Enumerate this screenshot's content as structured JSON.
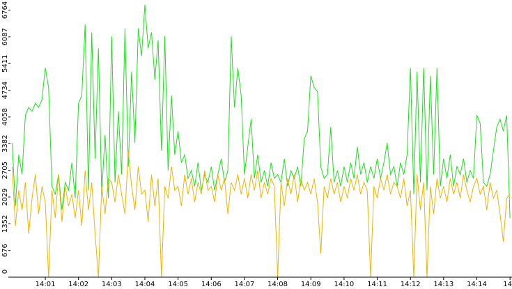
{
  "chart_data": {
    "type": "line",
    "x": [
      0,
      0.1,
      0.2,
      0.3,
      0.4,
      0.5,
      0.6,
      0.7,
      0.8,
      0.9,
      1,
      1.1,
      1.2,
      1.3,
      1.4,
      1.5,
      1.6,
      1.7,
      1.8,
      1.9,
      2,
      2.1,
      2.2,
      2.3,
      2.4,
      2.5,
      2.6,
      2.7,
      2.8,
      2.9,
      3,
      3.1,
      3.2,
      3.3,
      3.4,
      3.5,
      3.6,
      3.7,
      3.8,
      3.9,
      4,
      4.1,
      4.2,
      4.3,
      4.4,
      4.5,
      4.6,
      4.7,
      4.8,
      4.9,
      5,
      5.1,
      5.2,
      5.3,
      5.4,
      5.5,
      5.6,
      5.7,
      5.8,
      5.9,
      6,
      6.1,
      6.2,
      6.3,
      6.4,
      6.5,
      6.6,
      6.7,
      6.8,
      6.9,
      7,
      7.1,
      7.2,
      7.3,
      7.4,
      7.5,
      7.6,
      7.7,
      7.8,
      7.9,
      8,
      8.1,
      8.2,
      8.3,
      8.4,
      8.5,
      8.6,
      8.7,
      8.8,
      8.9,
      9,
      9.1,
      9.2,
      9.3,
      9.4,
      9.5,
      9.6,
      9.7,
      9.8,
      9.9,
      10,
      10.1,
      10.2,
      10.3,
      10.4,
      10.5,
      10.6,
      10.7,
      10.8,
      10.9,
      11,
      11.1,
      11.2,
      11.3,
      11.4,
      11.5,
      11.6,
      11.7,
      11.8,
      11.9,
      12,
      12.1,
      12.2,
      12.3,
      12.4,
      12.5,
      12.6,
      12.7,
      12.8,
      12.9,
      13,
      13.1,
      13.2,
      13.3,
      13.4,
      13.5,
      13.6,
      13.7,
      13.8,
      13.9,
      14,
      14.1,
      14.2,
      14.3,
      14.4,
      14.5,
      14.6,
      14.7,
      14.8,
      14.9,
      15
    ],
    "series": [
      {
        "color": "#22dd22",
        "values": [
          3400,
          1800,
          3100,
          2600,
          4100,
          4300,
          4200,
          4400,
          4300,
          4500,
          5300,
          4800,
          2300,
          2100,
          2600,
          1700,
          2400,
          2200,
          2900,
          2000,
          4400,
          4600,
          6400,
          2200,
          6200,
          3000,
          5800,
          2100,
          3600,
          2000,
          6100,
          2400,
          4200,
          2600,
          6300,
          2800,
          5200,
          3400,
          6300,
          5600,
          6900,
          5800,
          6200,
          5000,
          6000,
          3200,
          6100,
          2700,
          4600,
          3100,
          3700,
          2900,
          3100,
          2500,
          2700,
          2300,
          2900,
          2200,
          2600,
          2400,
          2800,
          2200,
          2600,
          3000,
          2400,
          2700,
          6100,
          4300,
          5300,
          4600,
          2600,
          3300,
          4000,
          2500,
          3100,
          2400,
          2700,
          2300,
          2900,
          2500,
          2600,
          2400,
          3000,
          2300,
          2700,
          2500,
          2800,
          2300,
          3500,
          3700,
          5100,
          4800,
          4700,
          2800,
          2500,
          2600,
          3800,
          2400,
          2700,
          2300,
          2800,
          2400,
          2900,
          2500,
          3300,
          2600,
          2900,
          2400,
          2800,
          2500,
          3000,
          2500,
          2900,
          3400,
          2600,
          2800,
          2300,
          2900,
          2600,
          3100,
          5300,
          2100,
          5200,
          2400,
          5300,
          2200,
          5100,
          2600,
          5300,
          2300,
          3000,
          2500,
          3100,
          2300,
          2800,
          2600,
          3000,
          2400,
          2700,
          2500,
          4100,
          3900,
          2400,
          2300,
          2600,
          3200,
          3800,
          4000,
          3700,
          4100,
          1500
        ]
      },
      {
        "color": "#f0b400",
        "values": [
          2800,
          1300,
          2200,
          1700,
          2400,
          1100,
          2000,
          2600,
          1600,
          2300,
          1900,
          0,
          2200,
          1500,
          2600,
          1400,
          2300,
          1800,
          2100,
          1500,
          2200,
          1300,
          2700,
          1700,
          2400,
          1100,
          0,
          2300,
          1600,
          2500,
          2400,
          1900,
          2600,
          2100,
          1600,
          3200,
          2300,
          1700,
          2800,
          2100,
          2200,
          1400,
          2600,
          1800,
          2500,
          0,
          2300,
          2000,
          2800,
          2200,
          2300,
          1800,
          2600,
          2100,
          2500,
          1900,
          2400,
          2100,
          2700,
          2200,
          2300,
          1900,
          2600,
          2200,
          2500,
          1600,
          2400,
          2200,
          2600,
          2100,
          2500,
          2000,
          2600,
          2200,
          2700,
          2000,
          2400,
          2100,
          2500,
          2300,
          0,
          2400,
          1800,
          2500,
          2100,
          2600,
          1900,
          2500,
          2200,
          2400,
          2100,
          2500,
          1900,
          600,
          2300,
          2000,
          2500,
          2100,
          2400,
          1900,
          2300,
          2000,
          2500,
          2200,
          2600,
          2100,
          2400,
          2200,
          0,
          2300,
          2000,
          2500,
          2200,
          2600,
          2100,
          2400,
          2300,
          2000,
          2500,
          1800,
          2200,
          0,
          2600,
          1700,
          2400,
          0,
          2300,
          1600,
          2500,
          2000,
          2300,
          1900,
          2500,
          2100,
          2400,
          2000,
          2600,
          2200,
          1900,
          2300,
          2500,
          2100,
          2300,
          1700,
          2400,
          2000,
          2200,
          1600,
          900,
          2000,
          2100
        ]
      }
    ],
    "xlim": [
      -0.05,
      15.06
    ],
    "xticks": [
      {
        "value": 1,
        "label": "14:01"
      },
      {
        "value": 2,
        "label": "14:02"
      },
      {
        "value": 3,
        "label": "14:03"
      },
      {
        "value": 4,
        "label": "14:04"
      },
      {
        "value": 5,
        "label": "14:05"
      },
      {
        "value": 6,
        "label": "14:06"
      },
      {
        "value": 7,
        "label": "14:07"
      },
      {
        "value": 8,
        "label": "14:08"
      },
      {
        "value": 9,
        "label": "14:09"
      },
      {
        "value": 10,
        "label": "14:10"
      },
      {
        "value": 11,
        "label": "14:11"
      },
      {
        "value": 12,
        "label": "14:12"
      },
      {
        "value": 13,
        "label": "14:13"
      },
      {
        "value": 14,
        "label": "14:14"
      },
      {
        "value": 15,
        "label": "14"
      }
    ],
    "ylim": [
      0,
      7020
    ],
    "yticks": [
      0,
      676,
      1352,
      2029,
      2705,
      3382,
      4058,
      4734,
      5411,
      6087,
      6764
    ]
  }
}
